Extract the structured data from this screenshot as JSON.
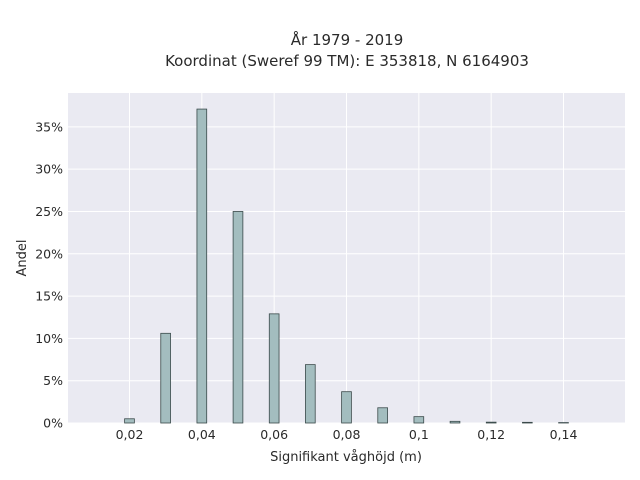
{
  "chart_data": {
    "type": "bar",
    "title_line1": "År 1979 - 2019",
    "title_line2": "Koordinat (Sweref 99 TM): E 353818, N 6164903",
    "xlabel": "Signifikant våghöjd (m)",
    "ylabel": "Andel",
    "x": [
      0.02,
      0.03,
      0.04,
      0.05,
      0.06,
      0.07,
      0.08,
      0.09,
      0.1,
      0.11,
      0.12,
      0.13,
      0.14
    ],
    "values": [
      0.5,
      10.6,
      37.1,
      25.0,
      12.9,
      6.9,
      3.7,
      1.8,
      0.75,
      0.2,
      0.1,
      0.08,
      0.05
    ],
    "xlim": [
      0.003,
      0.157
    ],
    "ylim": [
      0,
      39
    ],
    "xticks": [
      0.02,
      0.04,
      0.06,
      0.08,
      0.1,
      0.12,
      0.14
    ],
    "xtick_labels": [
      "0,02",
      "0,04",
      "0,06",
      "0,08",
      "0,1",
      "0,12",
      "0,14"
    ],
    "yticks": [
      0,
      5,
      10,
      15,
      20,
      25,
      30,
      35
    ],
    "ytick_labels": [
      "0%",
      "5%",
      "10%",
      "15%",
      "20%",
      "25%",
      "30%",
      "35%"
    ],
    "bar_width": 0.0027,
    "plot_background": "#eaeaf2",
    "bar_color": "#a3bdbf",
    "bar_edge_color": "#3a4a4a",
    "grid": true
  }
}
